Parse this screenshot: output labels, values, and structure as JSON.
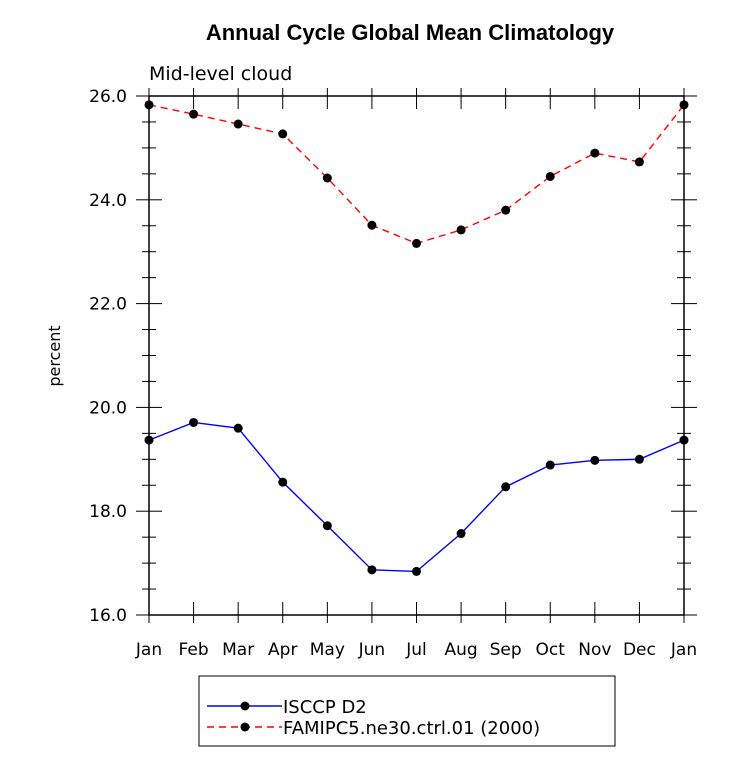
{
  "chart_data": {
    "type": "line",
    "title": "Annual Cycle Global Mean Climatology",
    "subtitle": "Mid-level cloud",
    "xlabel": "",
    "ylabel": "percent",
    "categories": [
      "Jan",
      "Feb",
      "Mar",
      "Apr",
      "May",
      "Jun",
      "Jul",
      "Aug",
      "Sep",
      "Oct",
      "Nov",
      "Dec",
      "Jan"
    ],
    "ylim": [
      16.0,
      26.0
    ],
    "yticks": [
      "16.0",
      "18.0",
      "20.0",
      "22.0",
      "24.0",
      "26.0"
    ],
    "series": [
      {
        "name": "ISCCP D2",
        "color": "#0000ff",
        "dash": "solid",
        "values": [
          19.37,
          19.71,
          19.6,
          18.56,
          17.72,
          16.87,
          16.84,
          17.57,
          18.47,
          18.89,
          18.98,
          19.0,
          19.37
        ]
      },
      {
        "name": "FAMIPC5.ne30.ctrl.01 (2000)",
        "color": "#ff0000",
        "dash": "dashed",
        "values": [
          25.83,
          25.65,
          25.46,
          25.27,
          24.42,
          23.51,
          23.16,
          23.42,
          23.8,
          24.45,
          24.9,
          24.73,
          25.83
        ]
      }
    ],
    "legend_position": "bottom"
  }
}
